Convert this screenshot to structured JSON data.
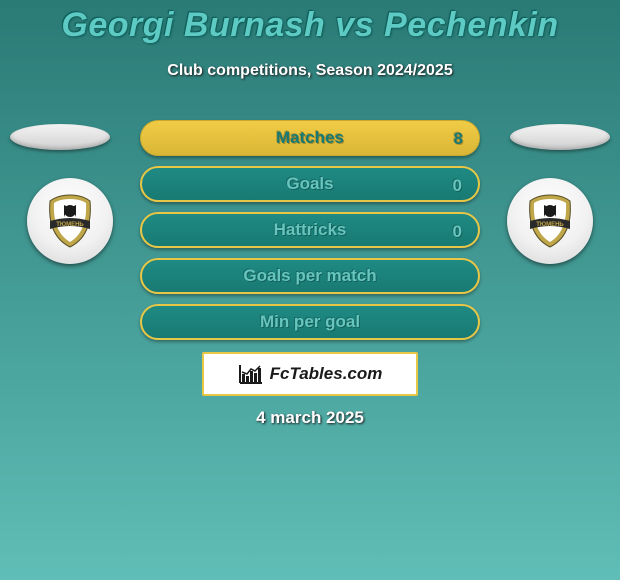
{
  "title": "Georgi Burnash vs Pechenkin",
  "subtitle": "Club competitions, Season 2024/2025",
  "date": "4 march 2025",
  "fctables_label": "FcTables.com",
  "colors": {
    "bg_top": "#2a7a76",
    "bg_bottom": "#5fbeb7",
    "title": "#5dcac3",
    "pill_highlight_bg": "#f0cc46",
    "pill_highlight_text": "#187a73",
    "pill_normal_bg": "#187a73",
    "pill_normal_border": "#e8c646",
    "pill_normal_text": "#66c6bf",
    "white": "#ffffff"
  },
  "rows": [
    {
      "label": "Matches",
      "left": "",
      "right": "8",
      "highlight": true
    },
    {
      "label": "Goals",
      "left": "",
      "right": "0",
      "highlight": false
    },
    {
      "label": "Hattricks",
      "left": "",
      "right": "0",
      "highlight": false
    },
    {
      "label": "Goals per match",
      "left": "",
      "right": "",
      "highlight": false
    },
    {
      "label": "Min per goal",
      "left": "",
      "right": "",
      "highlight": false
    }
  ],
  "row_top_start": 120,
  "row_gap": 46,
  "sample_bars": [
    16,
    12,
    18,
    14,
    20,
    22
  ]
}
